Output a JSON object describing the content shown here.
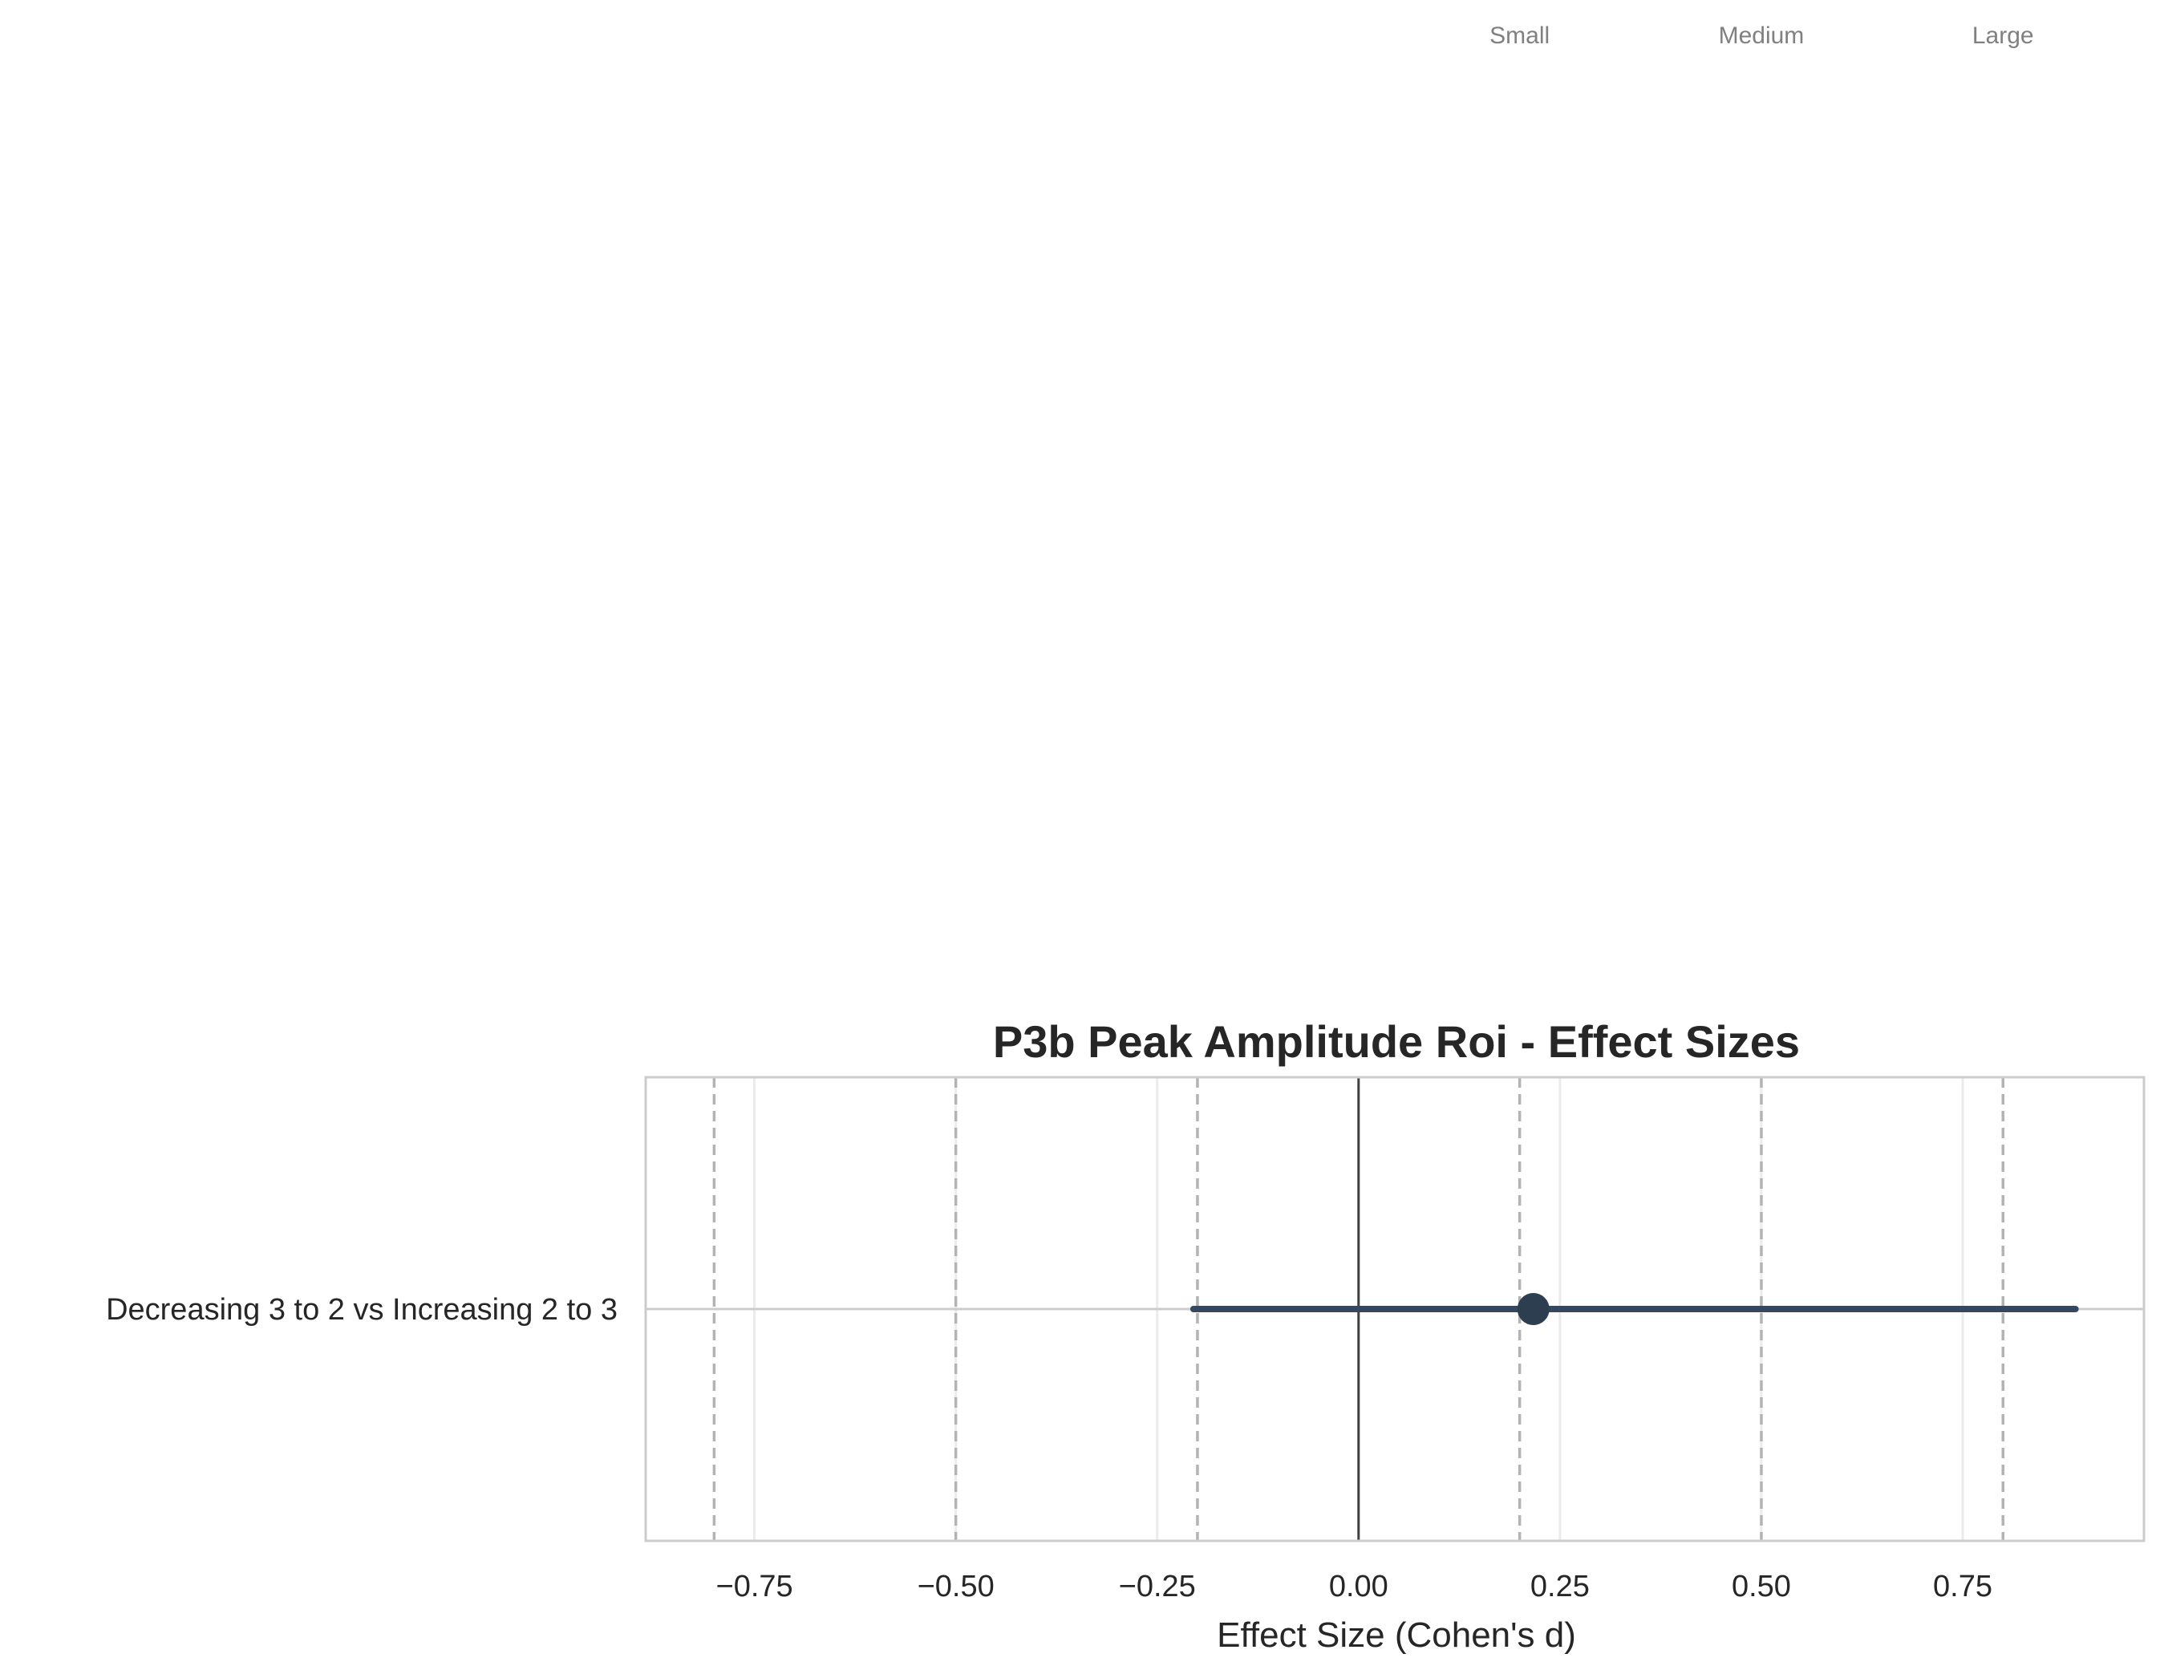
{
  "chart_data": {
    "type": "forest",
    "title": "P3b Peak Amplitude Roi - Effect Sizes",
    "xlabel": "Effect Size (Cohen's d)",
    "ylabel": "",
    "xlim": [
      -0.885,
      0.975
    ],
    "xticks": [
      -0.75,
      -0.5,
      -0.25,
      0.0,
      0.25,
      0.5,
      0.75
    ],
    "xtick_labels": [
      "−0.75",
      "−0.50",
      "−0.25",
      "0.00",
      "0.25",
      "0.50",
      "0.75"
    ],
    "grid": true,
    "zero_line": 0.0,
    "reference_lines": {
      "values": [
        -0.8,
        -0.5,
        -0.2,
        0.2,
        0.5,
        0.8
      ],
      "labels": [
        "Small",
        "Medium",
        "Large"
      ],
      "label_positions": [
        0.2,
        0.5,
        0.8
      ]
    },
    "categories": [
      "Decreasing 3 to 2 vs Increasing 2 to 3"
    ],
    "series": [
      {
        "estimate": [
          0.217
        ],
        "ci_low": [
          -0.205
        ],
        "ci_high": [
          0.89
        ]
      }
    ],
    "colors": {
      "point": "#2c3e50",
      "ci_line": "#34495e",
      "zero_line": "#404040",
      "reference_line": "#b3b3b3",
      "grid": "#ebebeb",
      "frame": "#cccccc"
    }
  }
}
